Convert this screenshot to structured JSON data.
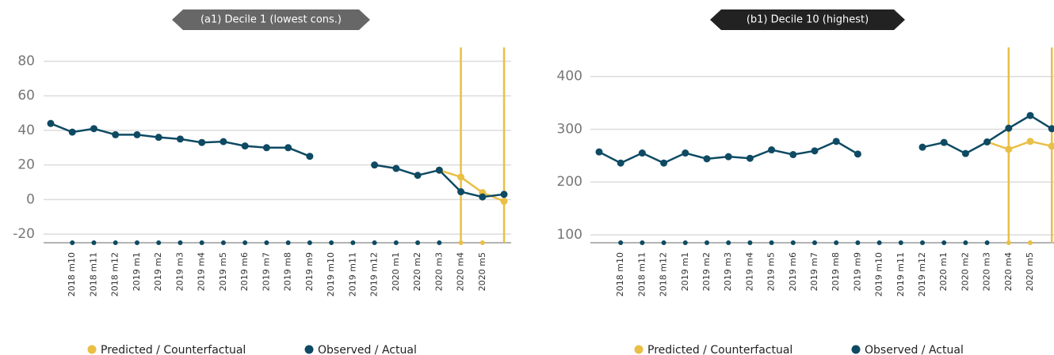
{
  "chart_data": [
    {
      "type": "line",
      "title": "(a1) Decile 1 (lowest cons.)",
      "categories": [
        null,
        "2018 m10",
        "2018 m11",
        "2018 m12",
        "2019 m1",
        "2019 m2",
        "2019 m3",
        "2019 m4",
        "2019 m5",
        "2019 m6",
        "2019 m7",
        "2019 m8",
        "2019 m9",
        "2019 m10",
        "2019 m11",
        "2019 m12",
        "2020 m1",
        "2020 m2",
        "2020 m3",
        "2020 m4",
        "2020 m5",
        null
      ],
      "series": [
        {
          "name": "Predicted / Counterfactual",
          "color": "#e9bf45",
          "values": [
            null,
            null,
            null,
            null,
            null,
            null,
            null,
            null,
            null,
            null,
            null,
            null,
            null,
            null,
            null,
            null,
            null,
            null,
            17,
            13,
            4,
            -1
          ]
        },
        {
          "name": "Observed / Actual",
          "color": "#0e4a63",
          "values": [
            44,
            39,
            41,
            37.5,
            37.5,
            36,
            35,
            33,
            33.5,
            31,
            30,
            30,
            25,
            null,
            null,
            20,
            18,
            14,
            17,
            4.5,
            1.5,
            3
          ]
        }
      ],
      "ylim": [
        -25,
        88
      ],
      "yticks": [
        -20,
        0,
        20,
        40,
        60,
        80
      ],
      "grid": true
    },
    {
      "type": "line",
      "title": "(b1) Decile 10 (highest)",
      "categories": [
        null,
        "2018 m10",
        "2018 m11",
        "2018 m12",
        "2019 m1",
        "2019 m2",
        "2019 m3",
        "2019 m4",
        "2019 m5",
        "2019 m6",
        "2019 m7",
        "2019 m8",
        "2019 m9",
        "2019 m10",
        "2019 m11",
        "2019 m12",
        "2020 m1",
        "2020 m2",
        "2020 m3",
        "2020 m4",
        "2020 m5",
        null
      ],
      "series": [
        {
          "name": "Predicted / Counterfactual",
          "color": "#e9bf45",
          "values": [
            null,
            null,
            null,
            null,
            null,
            null,
            null,
            null,
            null,
            null,
            null,
            null,
            null,
            null,
            null,
            null,
            null,
            null,
            276,
            262,
            277,
            268
          ]
        },
        {
          "name": "Observed / Actual",
          "color": "#0e4a63",
          "values": [
            257,
            236,
            255,
            236,
            255,
            244,
            248,
            245,
            261,
            252,
            259,
            277,
            253,
            null,
            null,
            266,
            275,
            254,
            276,
            302,
            326,
            301
          ]
        }
      ],
      "ylim": [
        85,
        455
      ],
      "yticks": [
        100,
        200,
        300,
        400
      ],
      "grid": true
    }
  ]
}
